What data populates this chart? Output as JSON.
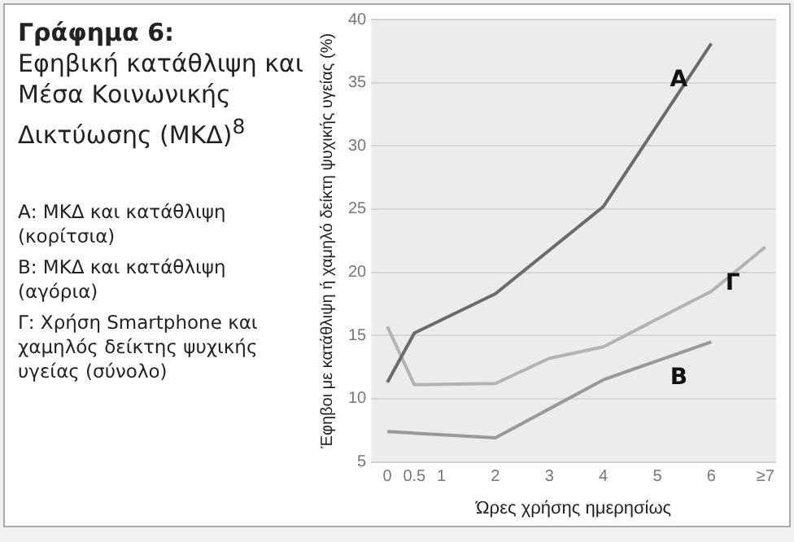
{
  "chart_data": {
    "type": "line",
    "title": "Γράφημα 6:",
    "subtitle": "Εφηβική κατάθλιψη και Μέσα Κοινωνικής Δικτύωσης (ΜΚΔ)$^{8}$",
    "xlabel": "Ώρες χρήσης ημερησίως",
    "ylabel": "Έφηβοι με κατάθλιψη ή χαμηλό δείκτη ψυχικής υγείας (%)",
    "annotations": [
      "Α: ΜΚΔ και κατάθλιψη (κορίτσια)",
      "Β: ΜΚΔ και κατάθλιψη (αγόρια)",
      "Γ: Χρήση Smartphone και χαμηλός δείκτης ψυχικής υγείας (σύνολο)"
    ],
    "xlim": [
      -0.3,
      7.2
    ],
    "xticks": [
      0,
      0.5,
      1,
      2,
      3,
      4,
      5,
      6,
      {
        "value": 7,
        "label": "≥7"
      }
    ],
    "ylim": [
      5,
      40
    ],
    "yticks": [
      5,
      10,
      15,
      20,
      25,
      30,
      35,
      40
    ],
    "grid": "y",
    "legend": false,
    "marker": "none",
    "line_style": "solid",
    "series": [
      {
        "name": "Α",
        "color": "#6b6b6b",
        "x": [
          0,
          0.5,
          2,
          4,
          6
        ],
        "values": [
          11.3,
          15.2,
          18.3,
          25.2,
          38.1
        ]
      },
      {
        "name": "Γ",
        "color": "#b3b3b3",
        "x": [
          0,
          0.5,
          2,
          3,
          4,
          5,
          6,
          7
        ],
        "values": [
          15.7,
          11.1,
          11.2,
          13.2,
          14.1,
          16.3,
          18.5,
          22.0
        ]
      },
      {
        "name": "Β",
        "color": "#999999",
        "x": [
          0,
          2,
          3,
          4,
          5,
          6
        ],
        "values": [
          7.4,
          6.9,
          9.2,
          11.5,
          13.0,
          14.5
        ]
      }
    ]
  }
}
